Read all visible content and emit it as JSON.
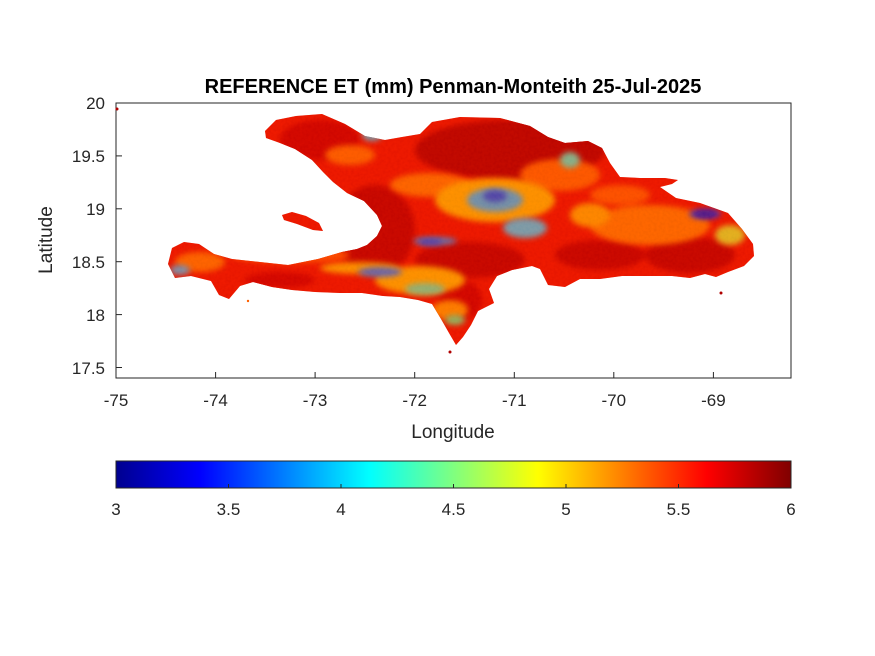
{
  "title": "REFERENCE ET (mm) Penman-Monteith 25-Jul-2025",
  "xlabel": "Longitude",
  "ylabel": "Latitude",
  "x_ticks": [
    "-75",
    "-74",
    "-73",
    "-72",
    "-71",
    "-70",
    "-69"
  ],
  "y_ticks": [
    "20",
    "19.5",
    "19",
    "18.5",
    "18",
    "17.5"
  ],
  "colorbar": {
    "ticks": [
      "3",
      "3.5",
      "4",
      "4.5",
      "5",
      "5.5",
      "6"
    ],
    "colormap": "jet",
    "range": [
      3,
      6
    ]
  },
  "map": {
    "xlim": [
      -75,
      -68.22
    ],
    "ylim": [
      17.4,
      20
    ],
    "region": "Hispaniola",
    "dominant_values": "5.5 to 6",
    "low_value_zones": "central highlands, southern peninsula ridge, eastern peninsula"
  },
  "colors": {
    "high": "#b30000",
    "mid_high": "#ff3300",
    "mid": "#ffaa00",
    "low": "#00aaff"
  }
}
